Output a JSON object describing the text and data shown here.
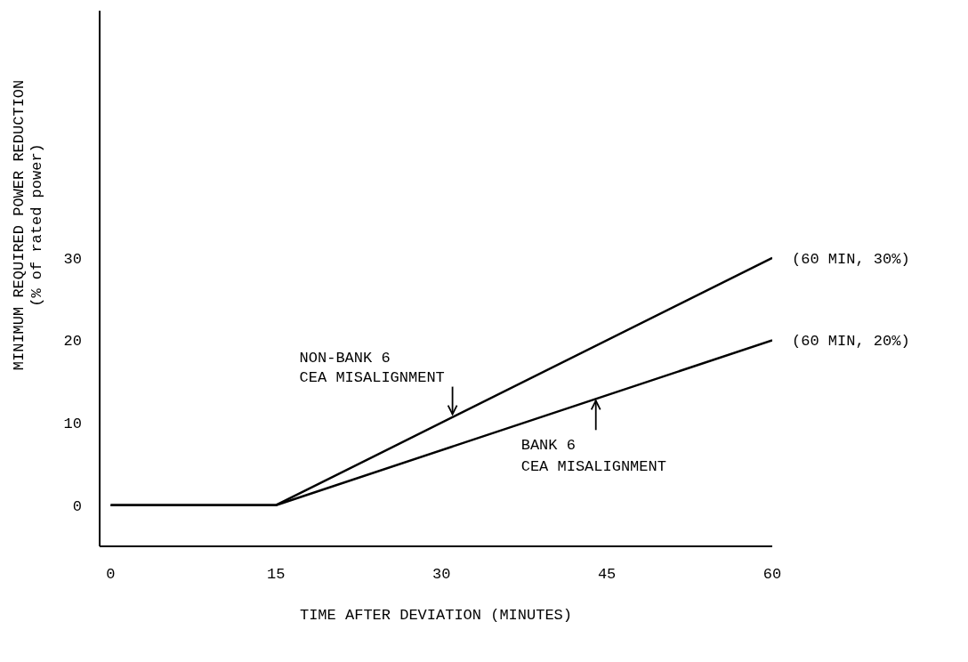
{
  "chart_data": {
    "type": "line",
    "xlabel": "TIME AFTER DEVIATION (MINUTES)",
    "ylabel": "MINIMUM REQUIRED POWER REDUCTION\n(% of rated power)",
    "series": [
      {
        "color": "#000000",
        "x": [
          0,
          15,
          60
        ],
        "values": [
          0,
          0,
          30
        ]
      },
      {
        "color": "#000000",
        "x": [
          0,
          15,
          60
        ],
        "values": [
          0,
          0,
          20
        ]
      }
    ],
    "xlim": [
      -1,
      60
    ],
    "xticks": [
      0,
      15,
      30,
      45,
      60
    ],
    "ylim": [
      -5,
      60
    ],
    "yticks": [
      0,
      10,
      20,
      30
    ],
    "grid": false,
    "annotations": [
      {
        "text": "NON-BANK 6\nCEA MISALIGNMENT",
        "x": 31,
        "y": 10.7
      },
      {
        "text": "BANK 6\nCEA MISALIGNMENT",
        "x": 44,
        "y": 13
      },
      {
        "text": "(60 MIN, 30%)",
        "x": 60,
        "y": 30
      },
      {
        "text": "(60 MIN, 20%)",
        "x": 60,
        "y": 20
      }
    ]
  }
}
